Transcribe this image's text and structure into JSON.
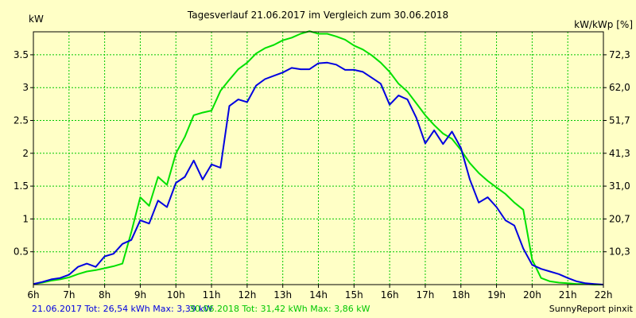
{
  "chart_data": {
    "type": "line",
    "title": "Tagesverlauf 21.06.2017 im Vergleich zum 30.06.2018",
    "ylabel_left": "kW",
    "ylabel_right": "kW/kWp [%]",
    "x_ticks": [
      "6h",
      "7h",
      "8h",
      "9h",
      "10h",
      "11h",
      "12h",
      "13h",
      "14h",
      "15h",
      "16h",
      "17h",
      "18h",
      "19h",
      "20h",
      "21h",
      "22h"
    ],
    "y_ticks_left": [
      "0.5",
      "1",
      "1.5",
      "2",
      "2.5",
      "3",
      "3.5"
    ],
    "y_ticks_right": [
      "10,3",
      "20,7",
      "31,0",
      "41,3",
      "51,7",
      "62,0",
      "72,3"
    ],
    "x_range": [
      6,
      22
    ],
    "ylim": [
      0,
      3.85
    ],
    "grid": true,
    "colors": {
      "background": "#ffffc6",
      "grid": "#00c800",
      "axis": "#000000"
    },
    "series": [
      {
        "name": "21.06.2017",
        "color": "#0000e0",
        "points": [
          [
            6.0,
            0.01
          ],
          [
            6.25,
            0.04
          ],
          [
            6.5,
            0.08
          ],
          [
            6.75,
            0.1
          ],
          [
            7.0,
            0.15
          ],
          [
            7.25,
            0.27
          ],
          [
            7.5,
            0.32
          ],
          [
            7.75,
            0.27
          ],
          [
            8.0,
            0.43
          ],
          [
            8.25,
            0.47
          ],
          [
            8.5,
            0.62
          ],
          [
            8.75,
            0.68
          ],
          [
            9.0,
            0.98
          ],
          [
            9.25,
            0.93
          ],
          [
            9.5,
            1.28
          ],
          [
            9.75,
            1.18
          ],
          [
            10.0,
            1.55
          ],
          [
            10.25,
            1.64
          ],
          [
            10.5,
            1.89
          ],
          [
            10.75,
            1.6
          ],
          [
            11.0,
            1.83
          ],
          [
            11.25,
            1.78
          ],
          [
            11.5,
            2.72
          ],
          [
            11.75,
            2.82
          ],
          [
            12.0,
            2.78
          ],
          [
            12.25,
            3.03
          ],
          [
            12.5,
            3.13
          ],
          [
            12.75,
            3.18
          ],
          [
            13.0,
            3.23
          ],
          [
            13.25,
            3.3
          ],
          [
            13.5,
            3.28
          ],
          [
            13.75,
            3.28
          ],
          [
            14.0,
            3.37
          ],
          [
            14.25,
            3.38
          ],
          [
            14.5,
            3.35
          ],
          [
            14.75,
            3.27
          ],
          [
            15.0,
            3.27
          ],
          [
            15.25,
            3.24
          ],
          [
            15.5,
            3.15
          ],
          [
            15.75,
            3.06
          ],
          [
            16.0,
            2.74
          ],
          [
            16.25,
            2.88
          ],
          [
            16.5,
            2.82
          ],
          [
            16.75,
            2.54
          ],
          [
            17.0,
            2.15
          ],
          [
            17.25,
            2.35
          ],
          [
            17.5,
            2.14
          ],
          [
            17.75,
            2.33
          ],
          [
            18.0,
            2.08
          ],
          [
            18.25,
            1.6
          ],
          [
            18.5,
            1.25
          ],
          [
            18.75,
            1.33
          ],
          [
            19.0,
            1.18
          ],
          [
            19.25,
            0.98
          ],
          [
            19.5,
            0.9
          ],
          [
            19.75,
            0.55
          ],
          [
            20.0,
            0.3
          ],
          [
            20.25,
            0.24
          ],
          [
            20.5,
            0.2
          ],
          [
            20.75,
            0.16
          ],
          [
            21.0,
            0.1
          ],
          [
            21.25,
            0.05
          ],
          [
            21.5,
            0.02
          ],
          [
            21.75,
            0.01
          ],
          [
            22.0,
            0.0
          ]
        ]
      },
      {
        "name": "30.06.2018",
        "color": "#00e000",
        "points": [
          [
            6.0,
            0.01
          ],
          [
            6.25,
            0.03
          ],
          [
            6.5,
            0.06
          ],
          [
            6.75,
            0.08
          ],
          [
            7.0,
            0.11
          ],
          [
            7.25,
            0.16
          ],
          [
            7.5,
            0.2
          ],
          [
            7.75,
            0.22
          ],
          [
            8.0,
            0.25
          ],
          [
            8.25,
            0.28
          ],
          [
            8.5,
            0.32
          ],
          [
            8.75,
            0.8
          ],
          [
            9.0,
            1.33
          ],
          [
            9.25,
            1.2
          ],
          [
            9.5,
            1.64
          ],
          [
            9.75,
            1.52
          ],
          [
            10.0,
            2.0
          ],
          [
            10.25,
            2.25
          ],
          [
            10.5,
            2.58
          ],
          [
            10.75,
            2.62
          ],
          [
            11.0,
            2.65
          ],
          [
            11.25,
            2.95
          ],
          [
            11.5,
            3.12
          ],
          [
            11.75,
            3.28
          ],
          [
            12.0,
            3.38
          ],
          [
            12.25,
            3.52
          ],
          [
            12.5,
            3.6
          ],
          [
            12.75,
            3.65
          ],
          [
            13.0,
            3.72
          ],
          [
            13.25,
            3.76
          ],
          [
            13.5,
            3.82
          ],
          [
            13.75,
            3.86
          ],
          [
            14.0,
            3.82
          ],
          [
            14.25,
            3.82
          ],
          [
            14.5,
            3.78
          ],
          [
            14.75,
            3.73
          ],
          [
            15.0,
            3.64
          ],
          [
            15.25,
            3.58
          ],
          [
            15.5,
            3.49
          ],
          [
            15.75,
            3.38
          ],
          [
            16.0,
            3.24
          ],
          [
            16.25,
            3.06
          ],
          [
            16.5,
            2.94
          ],
          [
            16.75,
            2.76
          ],
          [
            17.0,
            2.58
          ],
          [
            17.25,
            2.43
          ],
          [
            17.5,
            2.3
          ],
          [
            17.75,
            2.22
          ],
          [
            18.0,
            2.05
          ],
          [
            18.25,
            1.85
          ],
          [
            18.5,
            1.7
          ],
          [
            18.75,
            1.58
          ],
          [
            19.0,
            1.48
          ],
          [
            19.25,
            1.38
          ],
          [
            19.5,
            1.25
          ],
          [
            19.75,
            1.14
          ],
          [
            20.0,
            0.38
          ],
          [
            20.25,
            0.1
          ],
          [
            20.5,
            0.05
          ],
          [
            20.75,
            0.03
          ],
          [
            21.0,
            0.02
          ],
          [
            21.25,
            0.01
          ],
          [
            21.5,
            0.01
          ],
          [
            21.75,
            0.0
          ],
          [
            22.0,
            0.0
          ]
        ]
      }
    ],
    "legend": {
      "series1_text": "21.06.2017 Tot: 26,54 kWh Max: 3,39 kW",
      "series2_text": "30.06.2018 Tot: 31,42 kWh Max: 3,86 kW"
    },
    "credit": "SunnyReport pinxit"
  }
}
